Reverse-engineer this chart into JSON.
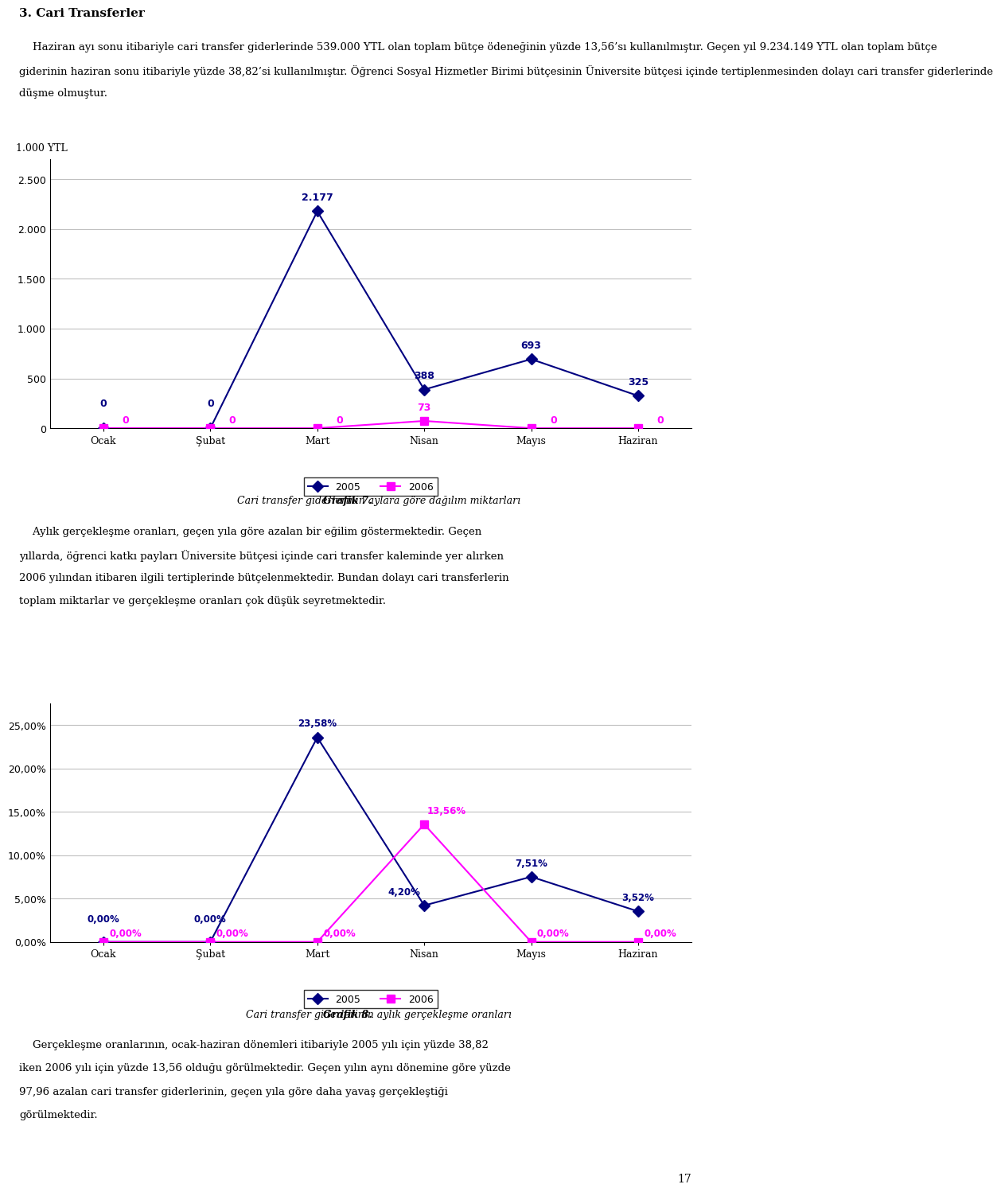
{
  "title_text": "3. Cari Transferler",
  "para1_lines": [
    "    Haziran ayı sonu itibariyle cari transfer giderlerinde 539.000 YTL olan toplam bütçe ödeneğinin yüzde 13,56’sı kullanılmıştır. Geçen yıl 9.234.149 YTL olan toplam bütçe",
    "giderinin haziran sonu itibariyle yüzde 38,82’si kullanılmıştır. Öğrenci Sosyal Hizmetler Birimi bütçesinin Üniversite bütçesi içinde tertiplenmesinden dolayı cari transfer giderlerinde",
    "düşme olmuştur."
  ],
  "chart1_ylabel": "1.000 YTL",
  "chart1_yticks": [
    0,
    500,
    1000,
    1500,
    2000,
    2500
  ],
  "chart1_ytick_labels": [
    "0",
    "500",
    "1.000",
    "1.500",
    "2.000",
    "2.500"
  ],
  "chart1_categories": [
    "Ocak",
    "Şubat",
    "Mart",
    "Nisan",
    "Mayıs",
    "Haziran"
  ],
  "chart1_2005": [
    0,
    0,
    2177,
    388,
    693,
    325
  ],
  "chart1_2006": [
    0,
    0,
    0,
    73,
    0,
    0
  ],
  "chart1_2005_labels": [
    "0",
    "0",
    "2.177",
    "388",
    "693",
    "325"
  ],
  "chart1_2006_labels": [
    "0",
    "0",
    "0",
    "73",
    "0",
    "0"
  ],
  "chart1_caption_bold": "Grafik 7.",
  "chart1_caption_rest": " Cari transfer giderlerinin aylara göre dağılım miktarları",
  "para2_lines": [
    "    Aylık gerçekleşme oranları, geçen yıla göre azalan bir eğilim göstermektedir. Geçen",
    "yıllarda, öğrenci katkı payları Üniversite bütçesi içinde cari transfer kaleminde yer alırken",
    "2006 yılından itibaren ilgili tertiplerinde bütçelenmektedir. Bundan dolayı cari transferlerin",
    "toplam miktarlar ve gerçekleşme oranları çok düşük seyretmektedir."
  ],
  "chart2_yticks": [
    0.0,
    0.05,
    0.1,
    0.15,
    0.2,
    0.25
  ],
  "chart2_ytick_labels": [
    "0,00%",
    "5,00%",
    "10,00%",
    "15,00%",
    "20,00%",
    "25,00%"
  ],
  "chart2_categories": [
    "Ocak",
    "Şubat",
    "Mart",
    "Nisan",
    "Mayıs",
    "Haziran"
  ],
  "chart2_2005": [
    0.0,
    0.0,
    0.2358,
    0.042,
    0.0751,
    0.0352
  ],
  "chart2_2006": [
    0.0,
    0.0,
    0.0,
    0.1356,
    0.0,
    0.0
  ],
  "chart2_2005_labels": [
    "0,00%",
    "0,00%",
    "23,58%",
    "4,20%",
    "7,51%",
    "3,52%"
  ],
  "chart2_2006_labels": [
    "0,00%",
    "0,00%",
    "0,00%",
    "13,56%",
    "0,00%",
    "0,00%"
  ],
  "chart2_caption_bold": "Grafik 8.",
  "chart2_caption_rest": " Cari transfer giderlerinin aylık gerçekleşme oranları",
  "para3_lines": [
    "    Gerçekleşme oranlarının, ocak-haziran dönemleri itibariyle 2005 yılı için yüzde 38,82",
    "iken 2006 yılı için yüzde 13,56 olduğu görülmektedir. Geçen yılın aynı dönemine göre yüzde",
    "97,96 azalan cari transfer giderlerinin, geçen yıla göre daha yavaş gerçekleştiği",
    "görülmektedir."
  ],
  "page_number": "17",
  "color_2005": "#000080",
  "color_2006": "#FF00FF",
  "bg_color": "#FFFFFF",
  "grid_color": "#C0C0C0",
  "chart_bg": "#FFFFFF"
}
